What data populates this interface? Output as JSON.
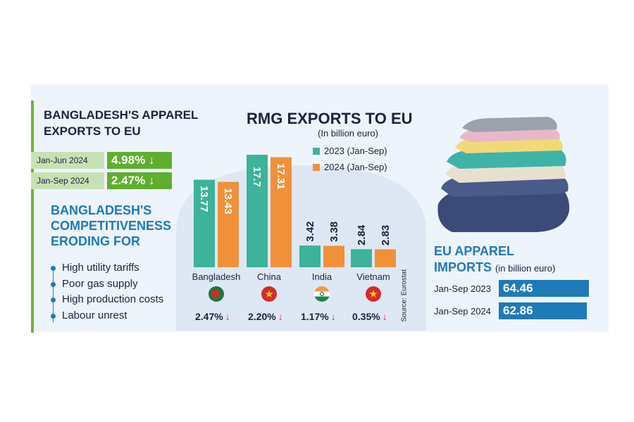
{
  "left": {
    "title": "BANGLADESH'S APPAREL EXPORTS TO EU",
    "stats": [
      {
        "period": "Jan-Jun 2024",
        "value": "4.98%",
        "arrow": "↓"
      },
      {
        "period": "Jan-Sep 2024",
        "value": "2.47%",
        "arrow": "↓"
      }
    ],
    "competitiveness_title": "BANGLADESH'S COMPETITIVENESS ERODING FOR",
    "reasons": [
      "High utility tariffs",
      "Poor gas supply",
      "High production costs",
      "Labour unrest"
    ]
  },
  "chart_data": {
    "type": "bar",
    "title": "RMG EXPORTS TO EU",
    "subtitle": "(In billion euro)",
    "categories": [
      "Bangladesh",
      "China",
      "India",
      "Vietnam"
    ],
    "series": [
      {
        "name": "2023 (Jan-Sep)",
        "values": [
          13.77,
          17.7,
          3.42,
          2.84
        ],
        "labels": [
          "13.77",
          "17.7",
          "3.42",
          "2.84"
        ],
        "color": "#3cb39a"
      },
      {
        "name": "2024 (Jan-Sep)",
        "values": [
          13.43,
          17.31,
          3.38,
          2.83
        ],
        "labels": [
          "13.43",
          "17.31",
          "3.38",
          "2.83"
        ],
        "color": "#f0913a"
      }
    ],
    "changes": [
      "2.47%",
      "2.20%",
      "1.17%",
      "0.35%"
    ],
    "change_arrow": "↓",
    "ylim": [
      0,
      17.7
    ],
    "source": "Source: Eurostat",
    "flags": [
      "bangladesh-flag",
      "china-flag",
      "india-flag",
      "vietnam-flag"
    ]
  },
  "eu": {
    "title_line1": "EU APPAREL",
    "title_line2": "IMPORTS",
    "unit": "(in billion euro)",
    "rows": [
      {
        "period": "Jan-Sep 2023",
        "value": 64.46,
        "label": "64.46"
      },
      {
        "period": "Jan-Sep 2024",
        "value": 62.86,
        "label": "62.86"
      }
    ],
    "bar_color": "#1f7ab8",
    "photo": "stacked-clothes-photo"
  }
}
